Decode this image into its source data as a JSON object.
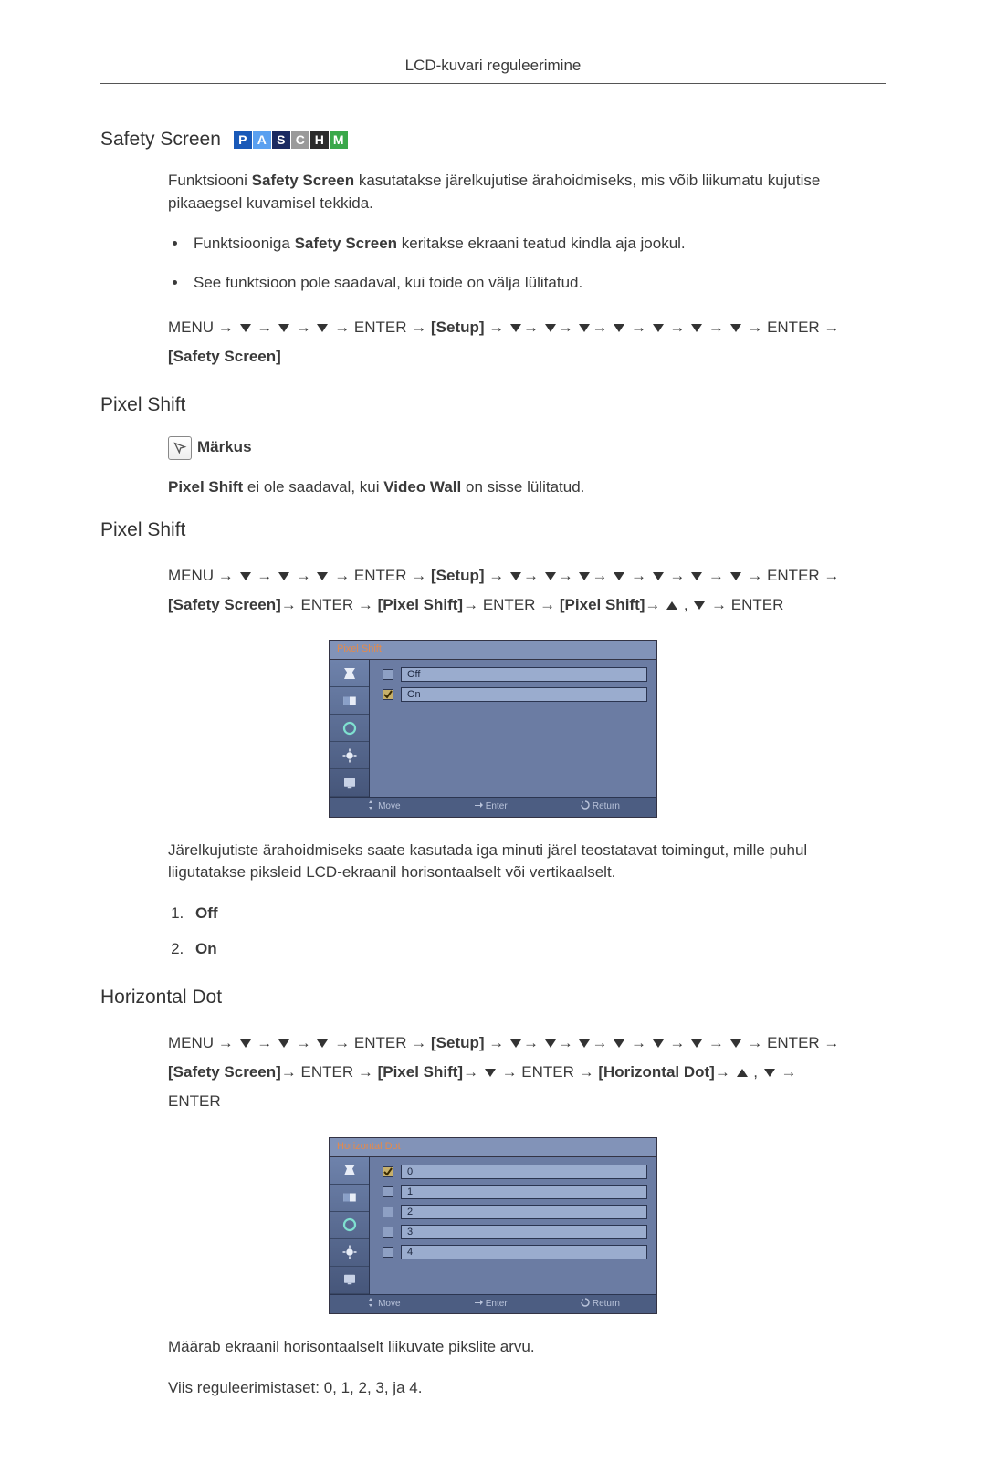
{
  "header": "LCD-kuvari reguleerimine",
  "sections": {
    "safety": {
      "title": "Safety Screen",
      "badges": [
        {
          "letter": "P",
          "bg": "#1959b8"
        },
        {
          "letter": "A",
          "bg": "#5aa0f0"
        },
        {
          "letter": "S",
          "bg": "#1a2a62"
        },
        {
          "letter": "C",
          "bg": "#9a9a9a"
        },
        {
          "letter": "H",
          "bg": "#2c2c2c"
        },
        {
          "letter": "M",
          "bg": "#3aa84a"
        }
      ],
      "intro": "Funktsiooni Safety Screen kasutatakse järelkujutise ärahoidmiseks, mis võib liikumatu kujutise pikaaegsel kuvamisel tekkida.",
      "intro_bold": "Safety Screen",
      "bullets": [
        {
          "pre": "Funktsiooniga ",
          "bold": "Safety Screen",
          "post": " keritakse ekraani teatud kindla aja jookul."
        },
        {
          "pre": "See funktsioon pole saadaval, kui toide on välja lülitatud.",
          "bold": "",
          "post": ""
        }
      ],
      "nav": {
        "menu": "MENU",
        "enter": "ENTER",
        "setup": "Setup",
        "final": "Safety Screen",
        "arrow": "→"
      }
    },
    "pixelshift_heading": {
      "title": "Pixel Shift",
      "note_label": "Märkus",
      "note_text_pre": "Pixel Shift",
      "note_text_mid": " ei ole saadaval, kui ",
      "note_text_bold2": "Video Wall",
      "note_text_post": " on sisse lülitatud."
    },
    "pixelshift": {
      "title": "Pixel Shift",
      "nav": {
        "menu": "MENU",
        "enter": "ENTER",
        "setup": "Setup",
        "safety": "Safety Screen",
        "ps": "Pixel Shift",
        "arrow": "→"
      },
      "osd": {
        "title": "Pixel Shift",
        "options": [
          {
            "label": "Off",
            "selected": false
          },
          {
            "label": "On",
            "selected": true
          }
        ],
        "footer": {
          "move": "Move",
          "enter": "Enter",
          "return": "Return"
        },
        "bg": "#6b7ca3",
        "panel_bg": "#46567a",
        "field_bg": "#9aacce",
        "sel_bg": "#c7b06a",
        "title_color": "#e58a4a"
      },
      "desc": "Järelkujutiste ärahoidmiseks saate kasutada iga minuti järel teostatavat toimingut, mille puhul liigutatakse piksleid LCD-ekraanil horisontaalselt või vertikaalselt.",
      "options": [
        "Off",
        "On"
      ]
    },
    "hdot": {
      "title": "Horizontal Dot",
      "nav": {
        "menu": "MENU",
        "enter": "ENTER",
        "setup": "Setup",
        "safety": "Safety Screen",
        "ps": "Pixel Shift",
        "hd": "Horizontal Dot",
        "arrow": "→"
      },
      "osd": {
        "title": "Horizontal Dot",
        "options": [
          {
            "label": "0",
            "selected": true
          },
          {
            "label": "1",
            "selected": false
          },
          {
            "label": "2",
            "selected": false
          },
          {
            "label": "3",
            "selected": false
          },
          {
            "label": "4",
            "selected": false
          }
        ],
        "footer": {
          "move": "Move",
          "enter": "Enter",
          "return": "Return"
        },
        "bg": "#6b7ca3",
        "panel_bg": "#46567a",
        "field_bg": "#9aacce",
        "sel_bg": "#c7b06a",
        "title_color": "#e58a4a"
      },
      "desc": "Määrab ekraanil horisontaalselt liikuvate pikslite arvu.",
      "range": "Viis reguleerimistaset: 0, 1, 2, 3, ja 4."
    }
  }
}
